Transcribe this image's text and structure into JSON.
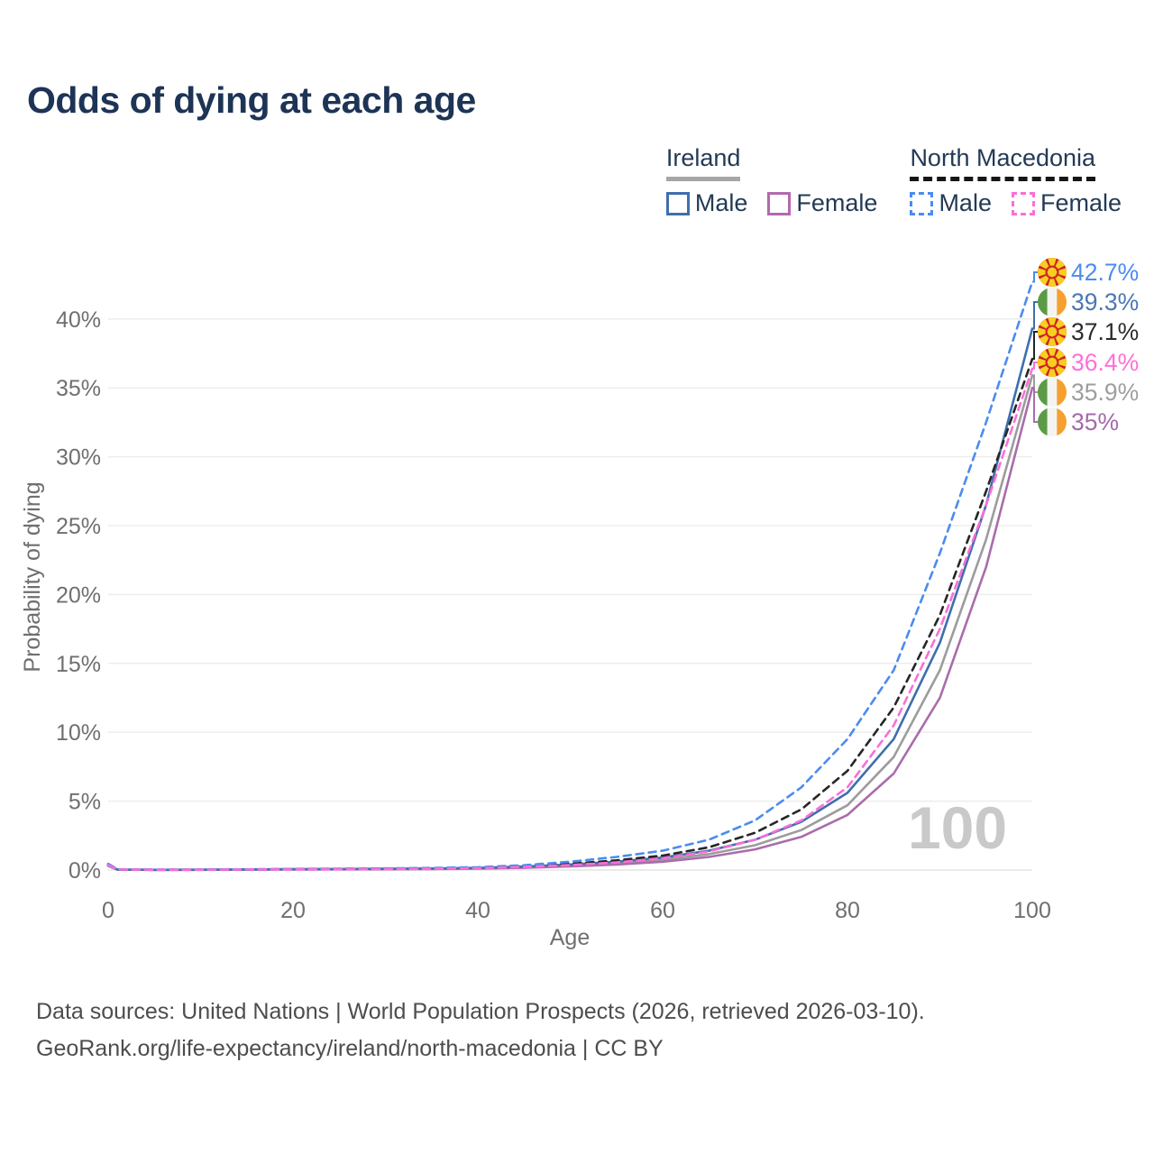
{
  "page": {
    "title": "Odds of dying at each age"
  },
  "legend": {
    "groups": [
      {
        "id": "ireland",
        "label": "Ireland",
        "underline_style": "solid",
        "underline_color": "#a6a6a6",
        "items": [
          {
            "id": "ie_male",
            "label": "Male",
            "color": "#3e6fad",
            "dashed": false
          },
          {
            "id": "ie_female",
            "label": "Female",
            "color": "#b468af",
            "dashed": false
          }
        ]
      },
      {
        "id": "north-macedonia",
        "label": "North Macedonia",
        "underline_style": "dashed",
        "underline_color": "#161616",
        "items": [
          {
            "id": "nm_male",
            "label": "Male",
            "color": "#4a8cf0",
            "dashed": true
          },
          {
            "id": "nm_female",
            "label": "Female",
            "color": "#fb6ed8",
            "dashed": true
          }
        ]
      }
    ]
  },
  "footer": {
    "line1": "Data sources: United Nations | World Population Prospects (2026, retrieved 2026-03-10).",
    "line2": "GeoRank.org/life-expectancy/ireland/north-macedonia | CC BY"
  },
  "chart_data": {
    "type": "line",
    "title": "Odds of dying at each age",
    "xlabel": "Age",
    "ylabel": "Probability of dying",
    "xlim": [
      0,
      100
    ],
    "ylim_percent": [
      0,
      44
    ],
    "x_ticks": [
      0,
      20,
      40,
      60,
      80,
      100
    ],
    "y_ticks_percent": [
      0,
      5,
      10,
      15,
      20,
      25,
      30,
      35,
      40
    ],
    "grid": "horizontal",
    "legend_position": "top-right",
    "hover_age_indicator": "100",
    "ages": [
      0,
      1,
      5,
      10,
      15,
      20,
      25,
      30,
      35,
      40,
      45,
      50,
      55,
      60,
      65,
      70,
      75,
      80,
      85,
      90,
      95,
      100
    ],
    "series": [
      {
        "id": "ie_total",
        "name": "Ireland",
        "color": "#9c9c9c",
        "dash": false,
        "flag": "ireland",
        "end_label": "35.9%",
        "end_value_percent": 35.9,
        "label_color": "#9e9e9e",
        "values_percent": [
          0.3,
          0.03,
          0.015,
          0.02,
          0.03,
          0.05,
          0.06,
          0.07,
          0.09,
          0.12,
          0.2,
          0.32,
          0.5,
          0.75,
          1.15,
          1.8,
          2.9,
          4.7,
          8.2,
          14.5,
          24,
          35.9
        ]
      },
      {
        "id": "ie_female",
        "name": "Ireland Female",
        "color": "#aa6cab",
        "dash": false,
        "flag": "ireland",
        "end_label": "35%",
        "end_value_percent": 35,
        "label_color": "#a569ab",
        "values_percent": [
          0.3,
          0.025,
          0.012,
          0.015,
          0.025,
          0.035,
          0.045,
          0.055,
          0.07,
          0.1,
          0.16,
          0.26,
          0.4,
          0.6,
          0.95,
          1.5,
          2.4,
          4.0,
          7.0,
          12.5,
          22,
          35.0
        ]
      },
      {
        "id": "ie_male",
        "name": "Ireland Male",
        "color": "#3e6fad",
        "dash": false,
        "flag": "ireland",
        "end_label": "39.3%",
        "end_value_percent": 39.3,
        "label_color": "#4a77b4",
        "values_percent": [
          0.35,
          0.03,
          0.015,
          0.02,
          0.04,
          0.06,
          0.07,
          0.09,
          0.11,
          0.15,
          0.25,
          0.4,
          0.6,
          0.9,
          1.4,
          2.2,
          3.5,
          5.6,
          9.5,
          16.5,
          26.5,
          39.3
        ]
      },
      {
        "id": "nm_total",
        "name": "North Macedonia",
        "color": "#262626",
        "dash": true,
        "flag": "north-macedonia",
        "end_label": "37.1%",
        "end_value_percent": 37.1,
        "label_color": "#2b2b2b",
        "values_percent": [
          0.4,
          0.04,
          0.02,
          0.02,
          0.04,
          0.06,
          0.08,
          0.1,
          0.12,
          0.16,
          0.28,
          0.45,
          0.7,
          1.05,
          1.65,
          2.7,
          4.4,
          7.2,
          11.8,
          18.5,
          27.5,
          37.1
        ]
      },
      {
        "id": "nm_male",
        "name": "North Macedonia Male",
        "color": "#4a8cf0",
        "dash": true,
        "flag": "north-macedonia",
        "end_label": "42.7%",
        "end_value_percent": 42.7,
        "label_color": "#4a8cf0",
        "values_percent": [
          0.45,
          0.05,
          0.03,
          0.03,
          0.05,
          0.08,
          0.1,
          0.12,
          0.15,
          0.2,
          0.35,
          0.6,
          0.95,
          1.4,
          2.2,
          3.6,
          6.0,
          9.5,
          14.5,
          23,
          32.5,
          42.7
        ]
      },
      {
        "id": "nm_female",
        "name": "North Macedonia Female",
        "color": "#fb6ed8",
        "dash": true,
        "flag": "north-macedonia",
        "end_label": "36.4%",
        "end_value_percent": 36.4,
        "label_color": "#ff6fd8",
        "values_percent": [
          0.35,
          0.04,
          0.02,
          0.02,
          0.03,
          0.04,
          0.05,
          0.07,
          0.09,
          0.13,
          0.22,
          0.36,
          0.55,
          0.85,
          1.35,
          2.2,
          3.6,
          6.0,
          10.5,
          17.5,
          26.5,
          36.4
        ]
      }
    ],
    "end_labels_order": [
      "nm_male",
      "ie_male",
      "nm_total",
      "nm_female",
      "ie_total",
      "ie_female"
    ]
  }
}
